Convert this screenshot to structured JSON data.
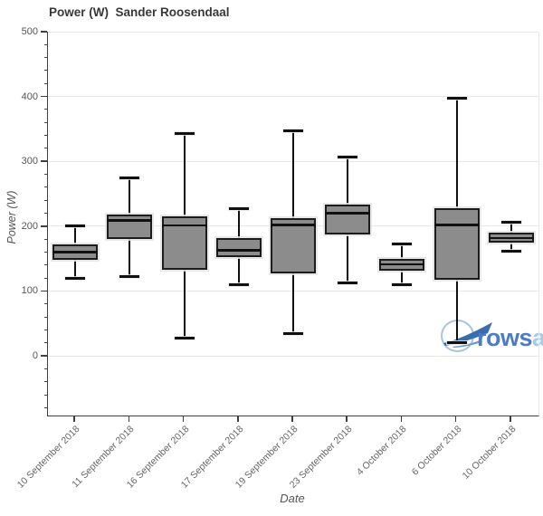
{
  "title": "Power (W)  Sander Roosendaal",
  "axes": {
    "x_label": "Date",
    "y_label": "Power (W)"
  },
  "watermark": {
    "brand_bold": "rows",
    "brand_light": "andall"
  },
  "colors": {
    "box_fill": "#8c8c8c",
    "box_border": "#1c1c1c",
    "whisker": "#111111",
    "grid": "#e8e8e8",
    "axis": "#3f3f3f",
    "tick_label": "#555555",
    "title": "#383838",
    "logo_circle": "#a6c4e2",
    "logo_swoosh": "#3a6cb0",
    "logo_text_bold": "#4b7cc4",
    "logo_text_light": "#a9c9e9"
  },
  "chart_data": {
    "type": "box",
    "title": "Power (W)  Sander Roosendaal",
    "xlabel": "Date",
    "ylabel": "Power (W)",
    "ylim": [
      -92,
      500
    ],
    "yticks": [
      0,
      100,
      200,
      300,
      400,
      500
    ],
    "ytick_minor_step": 20,
    "grid": "horizontal-major",
    "legend": "none",
    "categories": [
      "10 September 2018",
      "11 September 2018",
      "16 September 2018",
      "17 September 2018",
      "19 September 2018",
      "23 September 2018",
      "4 October 2018",
      "6 October 2018",
      "10 October 2018"
    ],
    "series": [
      {
        "name": "Power (W)",
        "boxes": [
          {
            "category": "10 September 2018",
            "low": 120,
            "q1": 148,
            "median": 160,
            "q3": 172,
            "high": 200
          },
          {
            "category": "11 September 2018",
            "low": 123,
            "q1": 180,
            "median": 209,
            "q3": 218,
            "high": 275
          },
          {
            "category": "16 September 2018",
            "low": 27,
            "q1": 133,
            "median": 201,
            "q3": 215,
            "high": 343
          },
          {
            "category": "17 September 2018",
            "low": 110,
            "q1": 152,
            "median": 163,
            "q3": 182,
            "high": 227
          },
          {
            "category": "19 September 2018",
            "low": 35,
            "q1": 127,
            "median": 202,
            "q3": 213,
            "high": 347
          },
          {
            "category": "23 September 2018",
            "low": 112,
            "q1": 187,
            "median": 220,
            "q3": 233,
            "high": 307
          },
          {
            "category": "4 October 2018",
            "low": 110,
            "q1": 132,
            "median": 141,
            "q3": 149,
            "high": 173
          },
          {
            "category": "6 October 2018",
            "low": 20,
            "q1": 118,
            "median": 202,
            "q3": 228,
            "high": 397
          },
          {
            "category": "10 October 2018",
            "low": 162,
            "q1": 175,
            "median": 182,
            "q3": 190,
            "high": 206
          }
        ]
      }
    ]
  }
}
